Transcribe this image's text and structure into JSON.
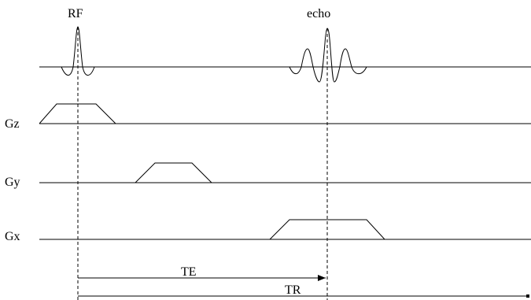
{
  "labels": {
    "rf": "RF",
    "echo": "echo",
    "gz": "Gz",
    "gy": "Gy",
    "gx": "Gx",
    "te": "TE",
    "tr": "TR"
  }
}
